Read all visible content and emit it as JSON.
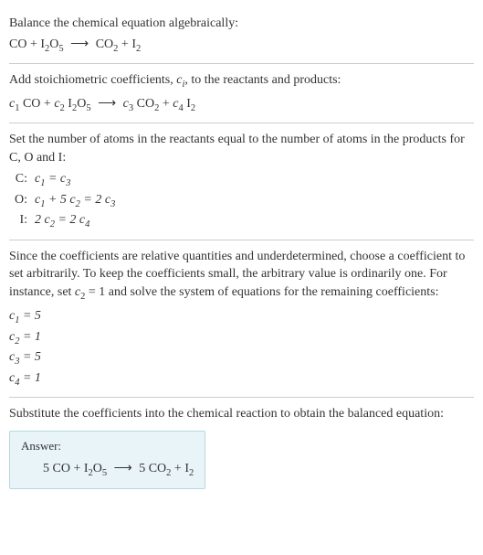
{
  "section1": {
    "title": "Balance the chemical equation algebraically:",
    "equation_html": "CO + I<sub>2</sub>O<sub>5</sub> <span class='arrow'>⟶</span> CO<sub>2</sub> + I<sub>2</sub>"
  },
  "section2": {
    "title_html": "Add stoichiometric coefficients, <span class='italic'>c<sub>i</sub></span>, to the reactants and products:",
    "equation_html": "<span class='italic'>c</span><sub>1</sub> CO + <span class='italic'>c</span><sub>2</sub> I<sub>2</sub>O<sub>5</sub> <span class='arrow'>⟶</span> <span class='italic'>c</span><sub>3</sub> CO<sub>2</sub> + <span class='italic'>c</span><sub>4</sub> I<sub>2</sub>"
  },
  "section3": {
    "title": "Set the number of atoms in the reactants equal to the number of atoms in the products for C, O and I:",
    "rows": [
      {
        "label": "C:",
        "eq_html": "<span class='italic'>c</span><sub>1</sub> = <span class='italic'>c</span><sub>3</sub>"
      },
      {
        "label": "O:",
        "eq_html": "<span class='italic'>c</span><sub>1</sub> + 5 <span class='italic'>c</span><sub>2</sub> = 2 <span class='italic'>c</span><sub>3</sub>"
      },
      {
        "label": "I:",
        "eq_html": "2 <span class='italic'>c</span><sub>2</sub> = 2 <span class='italic'>c</span><sub>4</sub>"
      }
    ]
  },
  "section4": {
    "title_html": "Since the coefficients are relative quantities and underdetermined, choose a coefficient to set arbitrarily. To keep the coefficients small, the arbitrary value is ordinarily one. For instance, set <span class='italic'>c</span><sub>2</sub> = 1 and solve the system of equations for the remaining coefficients:",
    "coefs": [
      {
        "html": "<span class='italic'>c</span><sub>1</sub> = 5"
      },
      {
        "html": "<span class='italic'>c</span><sub>2</sub> = 1"
      },
      {
        "html": "<span class='italic'>c</span><sub>3</sub> = 5"
      },
      {
        "html": "<span class='italic'>c</span><sub>4</sub> = 1"
      }
    ]
  },
  "section5": {
    "title": "Substitute the coefficients into the chemical reaction to obtain the balanced equation:",
    "answer_label": "Answer:",
    "answer_html": "5 CO + I<sub>2</sub>O<sub>5</sub> <span class='arrow'>⟶</span> 5 CO<sub>2</sub> + I<sub>2</sub>"
  },
  "colors": {
    "text": "#333333",
    "border": "#cccccc",
    "answer_bg": "#e8f4f8",
    "answer_border": "#b8d8e0"
  }
}
